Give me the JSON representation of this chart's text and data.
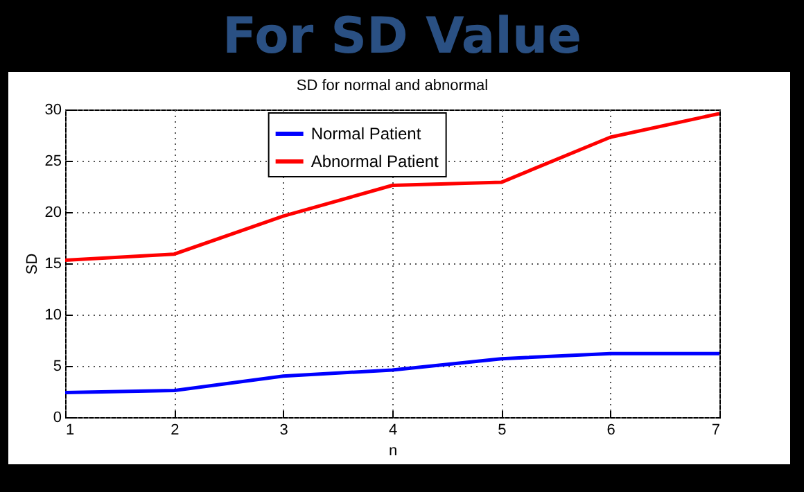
{
  "chart_data": {
    "type": "line",
    "title": "For SD Value",
    "subtitle": "SD for normal and abnormal",
    "xlabel": "n",
    "ylabel": "SD",
    "x": [
      1,
      2,
      3,
      4,
      5,
      6,
      7
    ],
    "series": [
      {
        "name": "Normal Patient",
        "color": "#0000ff",
        "values": [
          2.4,
          2.6,
          4.0,
          4.6,
          5.7,
          6.2,
          6.2
        ]
      },
      {
        "name": "Abnormal Patient",
        "color": "#ff0000",
        "values": [
          15.3,
          15.9,
          19.6,
          22.6,
          22.9,
          27.3,
          29.6
        ]
      }
    ],
    "xlim": [
      1,
      7
    ],
    "xticks": [
      1,
      2,
      3,
      4,
      5,
      6,
      7
    ],
    "ylim": [
      0,
      30
    ],
    "yticks": [
      0,
      5,
      10,
      15,
      20,
      25,
      30
    ],
    "grid": true,
    "legend": "top",
    "marker": "none",
    "line_style": "solid"
  }
}
